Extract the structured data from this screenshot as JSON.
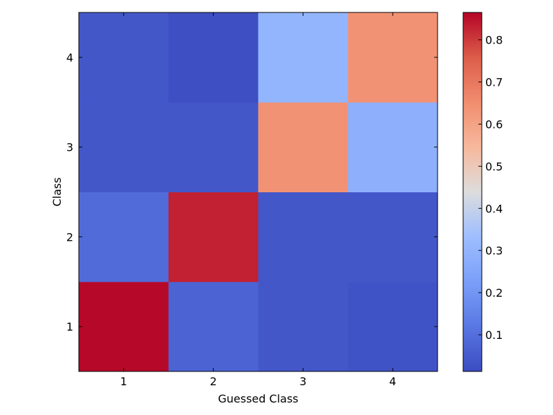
{
  "chart_data": {
    "type": "heatmap",
    "title": "",
    "xlabel": "Guessed Class",
    "ylabel": "Class",
    "x_categories": [
      "1",
      "2",
      "3",
      "4"
    ],
    "y_categories": [
      "1",
      "2",
      "3",
      "4"
    ],
    "values": [
      [
        0.86,
        0.07,
        0.04,
        0.03
      ],
      [
        0.09,
        0.83,
        0.04,
        0.04
      ],
      [
        0.04,
        0.04,
        0.64,
        0.28
      ],
      [
        0.04,
        0.02,
        0.3,
        0.64
      ]
    ],
    "colormap": "coolwarm",
    "color_range": [
      0.013,
      0.865
    ],
    "colorbar_ticks": [
      "0.1",
      "0.2",
      "0.3",
      "0.4",
      "0.5",
      "0.6",
      "0.7",
      "0.8"
    ],
    "grid": false
  }
}
